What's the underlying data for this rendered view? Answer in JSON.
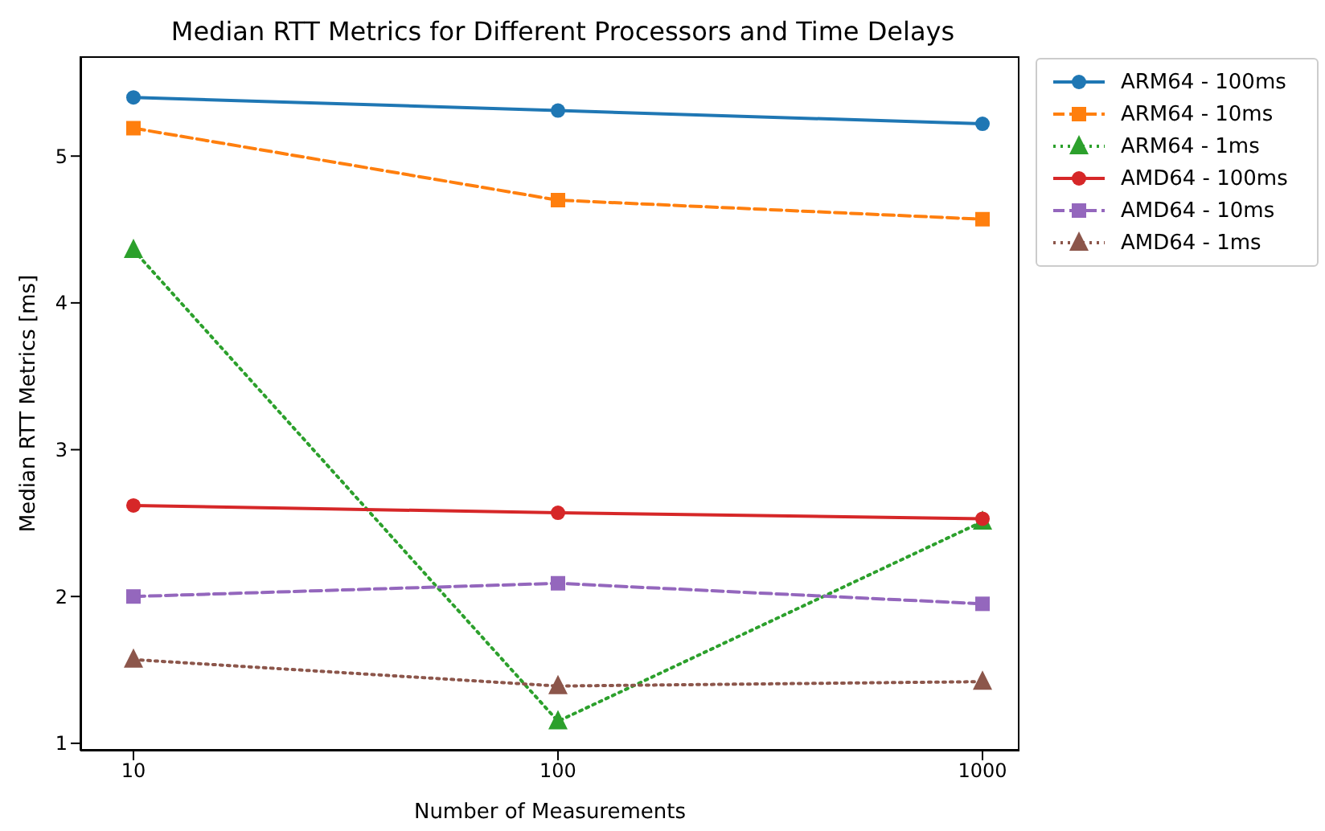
{
  "chart_data": {
    "type": "line",
    "title": "Median RTT Metrics for Different Processors and Time Delays",
    "xlabel": "Number of Measurements",
    "ylabel": "Median RTT Metrics [ms]",
    "x": [
      10,
      100,
      1000
    ],
    "log": "x",
    "xlim": [
      7.5,
      1222
    ],
    "xticks": [
      10,
      100,
      1000
    ],
    "ylim": [
      0.95,
      5.68
    ],
    "yticks": [
      1,
      2,
      3,
      4,
      5
    ],
    "grid": false,
    "legend": "top right",
    "series": [
      {
        "name": "ARM64 - 100ms",
        "color": "#1f77b4",
        "marker": "circle",
        "line_style": "solid",
        "values": [
          5.4,
          5.31,
          5.22
        ]
      },
      {
        "name": "ARM64 - 10ms",
        "color": "#ff7f0e",
        "marker": "square",
        "line_style": "dashed",
        "values": [
          5.19,
          4.7,
          4.57
        ]
      },
      {
        "name": "ARM64 - 1ms",
        "color": "#2ca02c",
        "marker": "triangle",
        "line_style": "dotted",
        "values": [
          4.36,
          1.15,
          2.51
        ]
      },
      {
        "name": "AMD64 - 100ms",
        "color": "#d62728",
        "marker": "circle",
        "line_style": "solid",
        "values": [
          2.62,
          2.57,
          2.53
        ]
      },
      {
        "name": "AMD64 - 10ms",
        "color": "#9467bd",
        "marker": "square",
        "line_style": "dashed",
        "values": [
          2.0,
          2.09,
          1.95
        ]
      },
      {
        "name": "AMD64 - 1ms",
        "color": "#8c564b",
        "marker": "triangle",
        "line_style": "dotted",
        "values": [
          1.57,
          1.39,
          1.42
        ]
      }
    ]
  }
}
